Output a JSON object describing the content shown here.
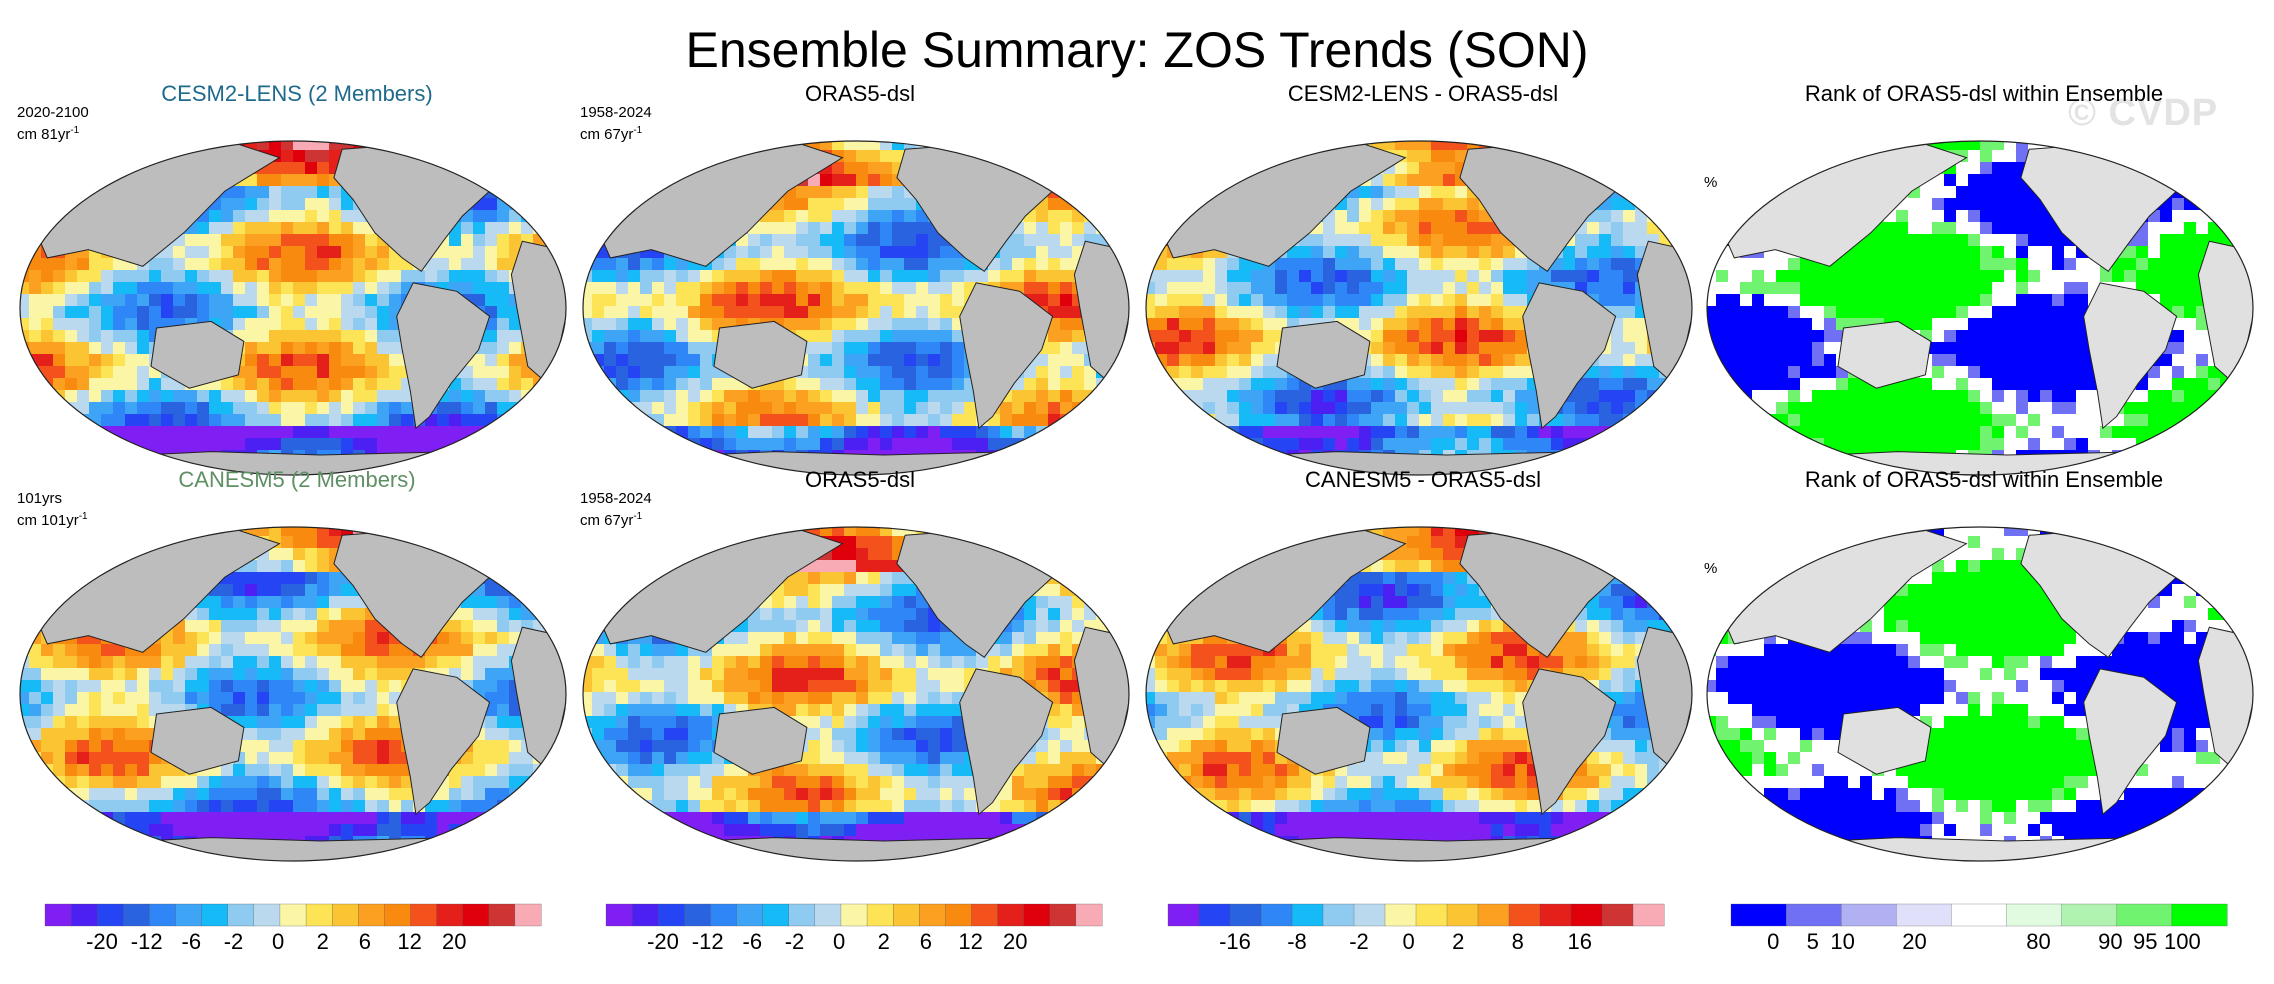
{
  "title": "Ensemble Summary: ZOS Trends (SON)",
  "watermark": "© CVDP",
  "colors": {
    "trend_scale": [
      "#7f1ff4",
      "#4c20f3",
      "#2545f5",
      "#2a63e0",
      "#2f86f7",
      "#3ea4f5",
      "#15baf6",
      "#8fcbf0",
      "#bad9ee",
      "#fbf5a6",
      "#fde456",
      "#fac432",
      "#fba020",
      "#f98a10",
      "#f4521c",
      "#e51f1a",
      "#e0000c",
      "#cf3434",
      "#f8aab5"
    ],
    "rank_scale": [
      "#0000ff",
      "#7070f4",
      "#b0b0f3",
      "#e0e0fb",
      "#ffffff",
      "#e0fbe0",
      "#b0f3b0",
      "#70f470",
      "#00ff00"
    ],
    "land": "#bdbdbd",
    "land_rank": "#e0e0e0"
  },
  "rows": [
    {
      "panels": [
        {
          "title": "CESM2-LENS (2 Members)",
          "corner_line1": "2020-2100",
          "corner_line2": "cm 81yr",
          "corner_exp": "-1",
          "kind": "trend",
          "seed": 11
        },
        {
          "title": "ORAS5-dsl",
          "corner_line1": "1958-2024",
          "corner_line2": "cm 67yr",
          "corner_exp": "-1",
          "kind": "trend",
          "seed": 23
        },
        {
          "title": "CESM2-LENS - ORAS5-dsl",
          "corner_line1": "",
          "corner_line2": "",
          "corner_exp": "",
          "kind": "trend",
          "seed": 37
        },
        {
          "title": "Rank of ORAS5-dsl within Ensemble",
          "corner_line1": "%",
          "corner_line2": "",
          "corner_exp": "",
          "kind": "rank",
          "seed": 41
        }
      ]
    },
    {
      "panels": [
        {
          "title": "CANESM5 (2 Members)",
          "corner_line1": "101yrs",
          "corner_line2": "cm 101yr",
          "corner_exp": "-1",
          "kind": "trend",
          "seed": 53
        },
        {
          "title": "ORAS5-dsl",
          "corner_line1": "1958-2024",
          "corner_line2": "cm 67yr",
          "corner_exp": "-1",
          "kind": "trend",
          "seed": 67
        },
        {
          "title": "CANESM5 - ORAS5-dsl",
          "corner_line1": "",
          "corner_line2": "",
          "corner_exp": "",
          "kind": "trend",
          "seed": 71
        },
        {
          "title": "Rank of ORAS5-dsl within Ensemble",
          "corner_line1": "%",
          "corner_line2": "",
          "corner_exp": "",
          "kind": "rank",
          "seed": 83
        }
      ]
    }
  ],
  "colorbars": [
    {
      "labels": [
        "-20",
        "-12",
        "-6",
        "-2",
        "0",
        "2",
        "6",
        "12",
        "20"
      ],
      "scale": "trend"
    },
    {
      "labels": [
        "-20",
        "-12",
        "-6",
        "-2",
        "0",
        "2",
        "6",
        "12",
        "20"
      ],
      "scale": "trend"
    },
    {
      "labels": [
        "-16",
        "-8",
        "-2",
        "0",
        "2",
        "8",
        "16"
      ],
      "scale": "trend"
    },
    {
      "labels": [
        "0",
        "5",
        "10",
        "20",
        "80",
        "90",
        "95",
        "100"
      ],
      "scale": "rank"
    }
  ],
  "chart_data": {
    "type": "heatmap",
    "title": "Ensemble Summary: ZOS Trends (SON)",
    "projection": "global map (Robinson-like), Pacific-centered",
    "trend_colorbar_levels": [
      "-20",
      "-12",
      "-6",
      "-2",
      "0",
      "2",
      "6",
      "12",
      "20"
    ],
    "difference_colorbar_levels": [
      "-16",
      "-8",
      "-2",
      "0",
      "2",
      "8",
      "16"
    ],
    "rank_colorbar_levels": [
      "0",
      "5",
      "10",
      "20",
      "80",
      "90",
      "95",
      "100"
    ],
    "units": "cm"
  }
}
